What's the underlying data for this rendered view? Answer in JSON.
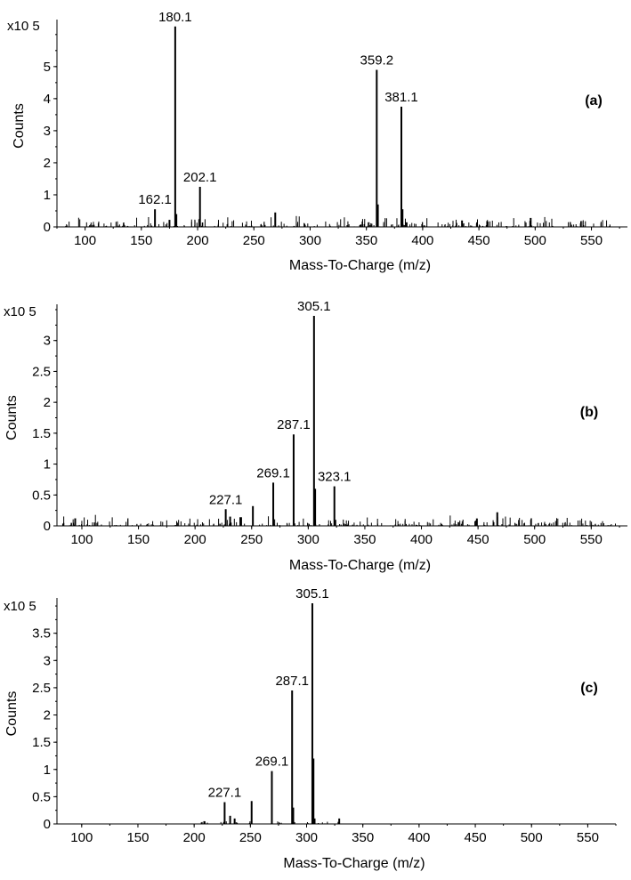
{
  "chart_data": [
    {
      "type": "bar",
      "panel_label": "(a)",
      "xlabel": "Mass-To-Charge (m/z)",
      "ylabel": "Counts",
      "y_multiplier": "x10 5",
      "xlim": [
        75,
        582
      ],
      "ylim": [
        0,
        6.3
      ],
      "xticks": [
        100,
        150,
        200,
        250,
        300,
        350,
        400,
        450,
        500,
        550
      ],
      "yticks": [
        0,
        1,
        2,
        3,
        4,
        5
      ],
      "peaks": [
        {
          "x": 162.1,
          "y": 0.55,
          "label": "162.1"
        },
        {
          "x": 180.1,
          "y": 6.25,
          "label": "180.1"
        },
        {
          "x": 181.1,
          "y": 0.4,
          "label": ""
        },
        {
          "x": 202.1,
          "y": 1.25,
          "label": "202.1"
        },
        {
          "x": 269.0,
          "y": 0.45,
          "label": ""
        },
        {
          "x": 359.2,
          "y": 4.9,
          "label": "359.2"
        },
        {
          "x": 360.2,
          "y": 0.7,
          "label": ""
        },
        {
          "x": 381.1,
          "y": 3.75,
          "label": "381.1"
        },
        {
          "x": 382.1,
          "y": 0.55,
          "label": ""
        },
        {
          "x": 496.0,
          "y": 0.28,
          "label": ""
        },
        {
          "x": 175.0,
          "y": 0.22,
          "label": ""
        },
        {
          "x": 435.0,
          "y": 0.2,
          "label": ""
        }
      ]
    },
    {
      "type": "bar",
      "panel_label": "(b)",
      "xlabel": "Mass-To-Charge (m/z)",
      "ylabel": "Counts",
      "y_multiplier": "x10 5",
      "xlim": [
        78,
        582
      ],
      "ylim": [
        0,
        3.5
      ],
      "xticks": [
        100,
        150,
        200,
        250,
        300,
        350,
        400,
        450,
        500,
        550
      ],
      "yticks": [
        0,
        0.5,
        1,
        1.5,
        2,
        2.5,
        3
      ],
      "peaks": [
        {
          "x": 227.1,
          "y": 0.27,
          "label": "227.1"
        },
        {
          "x": 251.1,
          "y": 0.32,
          "label": ""
        },
        {
          "x": 269.1,
          "y": 0.7,
          "label": "269.1"
        },
        {
          "x": 287.1,
          "y": 1.48,
          "label": "287.1"
        },
        {
          "x": 305.1,
          "y": 3.4,
          "label": "305.1"
        },
        {
          "x": 306.1,
          "y": 0.6,
          "label": ""
        },
        {
          "x": 323.1,
          "y": 0.64,
          "label": "323.1"
        },
        {
          "x": 467.0,
          "y": 0.22,
          "label": ""
        },
        {
          "x": 449.0,
          "y": 0.12,
          "label": ""
        },
        {
          "x": 231.0,
          "y": 0.15,
          "label": ""
        },
        {
          "x": 240.0,
          "y": 0.14,
          "label": ""
        }
      ]
    },
    {
      "type": "bar",
      "panel_label": "(c)",
      "xlabel": "Mass-To-Charge (m/z)",
      "ylabel": "Counts",
      "y_multiplier": "x10 5",
      "xlim": [
        78,
        575
      ],
      "ylim": [
        0,
        4.05
      ],
      "xticks": [
        100,
        150,
        200,
        250,
        300,
        350,
        400,
        450,
        500,
        550
      ],
      "yticks": [
        0,
        0.5,
        1,
        1.5,
        2,
        2.5,
        3,
        3.5
      ],
      "peaks": [
        {
          "x": 209.0,
          "y": 0.05,
          "label": ""
        },
        {
          "x": 227.1,
          "y": 0.4,
          "label": "227.1"
        },
        {
          "x": 232.0,
          "y": 0.15,
          "label": ""
        },
        {
          "x": 236.0,
          "y": 0.1,
          "label": ""
        },
        {
          "x": 251.1,
          "y": 0.42,
          "label": ""
        },
        {
          "x": 269.1,
          "y": 0.97,
          "label": "269.1"
        },
        {
          "x": 287.1,
          "y": 2.45,
          "label": "287.1"
        },
        {
          "x": 288.1,
          "y": 0.3,
          "label": ""
        },
        {
          "x": 305.1,
          "y": 4.05,
          "label": "305.1"
        },
        {
          "x": 306.1,
          "y": 1.2,
          "label": ""
        },
        {
          "x": 307.1,
          "y": 0.1,
          "label": ""
        },
        {
          "x": 329.0,
          "y": 0.1,
          "label": ""
        }
      ]
    }
  ]
}
